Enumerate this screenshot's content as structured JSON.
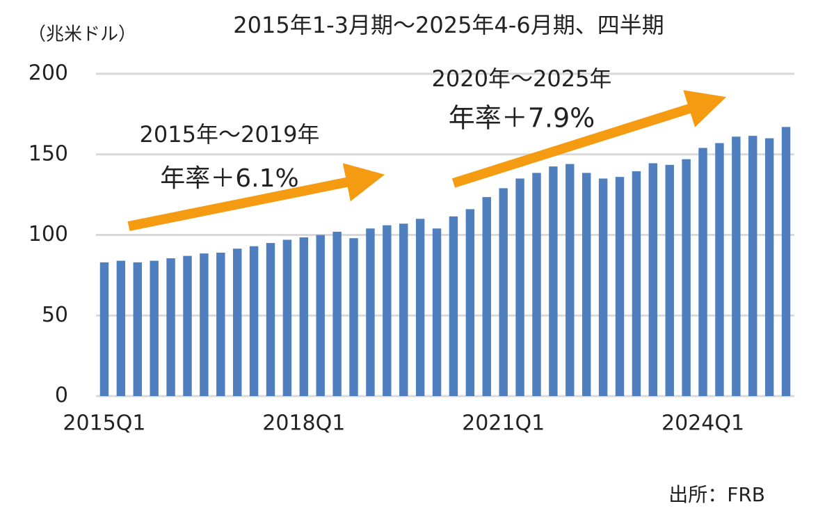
{
  "chart_data": {
    "type": "bar",
    "title": "2015年1-3月期～2025年4-6月期、四半期",
    "y_label": "（兆米ドル）",
    "source": "出所：FRB",
    "annotations": [
      "2015年～2019年",
      "年率＋6.1%",
      "2020年～2025年",
      "年率＋7.9%"
    ],
    "categories": [
      "2015Q1",
      null,
      null,
      null,
      null,
      null,
      null,
      null,
      null,
      null,
      null,
      null,
      "2018Q1",
      null,
      null,
      null,
      null,
      null,
      null,
      null,
      null,
      null,
      null,
      null,
      "2021Q1",
      null,
      null,
      null,
      null,
      null,
      null,
      null,
      null,
      null,
      null,
      null,
      "2024Q1",
      null,
      null,
      null,
      null,
      null
    ],
    "values": [
      83,
      84,
      83,
      84,
      85.5,
      87,
      88.5,
      89,
      91.5,
      93,
      95,
      97,
      98.5,
      100,
      102,
      98,
      104,
      106,
      107,
      110,
      104,
      111.5,
      116,
      123.5,
      129,
      135,
      138.5,
      142.5,
      144,
      138.5,
      135,
      136,
      139.5,
      144.5,
      143.5,
      147,
      154,
      157,
      161,
      161.5,
      160,
      167
    ],
    "color": "#4f7fbf",
    "ylim": [
      0,
      200
    ],
    "yticks": [
      0,
      50,
      100,
      150,
      200
    ],
    "grid": true
  }
}
